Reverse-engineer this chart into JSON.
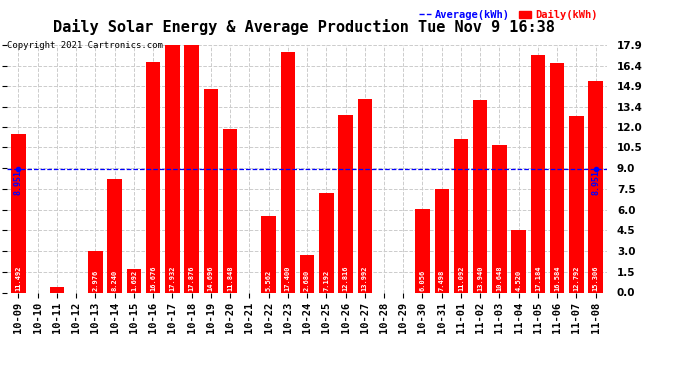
{
  "title": "Daily Solar Energy & Average Production Tue Nov 9 16:38",
  "copyright": "Copyright 2021 Cartronics.com",
  "legend_average": "Average(kWh)",
  "legend_daily": "Daily(kWh)",
  "average_value": 8.951,
  "categories": [
    "10-09",
    "10-10",
    "10-11",
    "10-12",
    "10-13",
    "10-14",
    "10-15",
    "10-16",
    "10-17",
    "10-18",
    "10-19",
    "10-20",
    "10-21",
    "10-22",
    "10-23",
    "10-24",
    "10-25",
    "10-26",
    "10-27",
    "10-28",
    "10-29",
    "10-30",
    "10-31",
    "11-01",
    "11-02",
    "11-03",
    "11-04",
    "11-05",
    "11-06",
    "11-07",
    "11-08"
  ],
  "values": [
    11.492,
    0.0,
    0.368,
    0.0,
    2.976,
    8.24,
    1.692,
    16.676,
    17.932,
    17.876,
    14.696,
    11.848,
    0.0,
    5.562,
    17.4,
    2.68,
    7.192,
    12.816,
    13.992,
    0.0,
    0.0,
    6.056,
    7.498,
    11.092,
    13.94,
    10.648,
    4.52,
    17.184,
    16.584,
    12.792,
    15.306
  ],
  "bar_color": "#ff0000",
  "avg_line_color": "#0000ff",
  "avg_label_color": "#0000ff",
  "daily_label_color": "#ff0000",
  "background_color": "#ffffff",
  "grid_color": "#cccccc",
  "ylim": [
    0,
    17.9
  ],
  "yticks": [
    0.0,
    1.5,
    3.0,
    4.5,
    6.0,
    7.5,
    9.0,
    10.5,
    12.0,
    13.4,
    14.9,
    16.4,
    17.9
  ],
  "title_fontsize": 11,
  "bar_label_fontsize": 5.0,
  "tick_fontsize": 7.5,
  "avg_label_fontsize": 6.0,
  "copyright_fontsize": 6.5,
  "legend_fontsize": 7.5
}
